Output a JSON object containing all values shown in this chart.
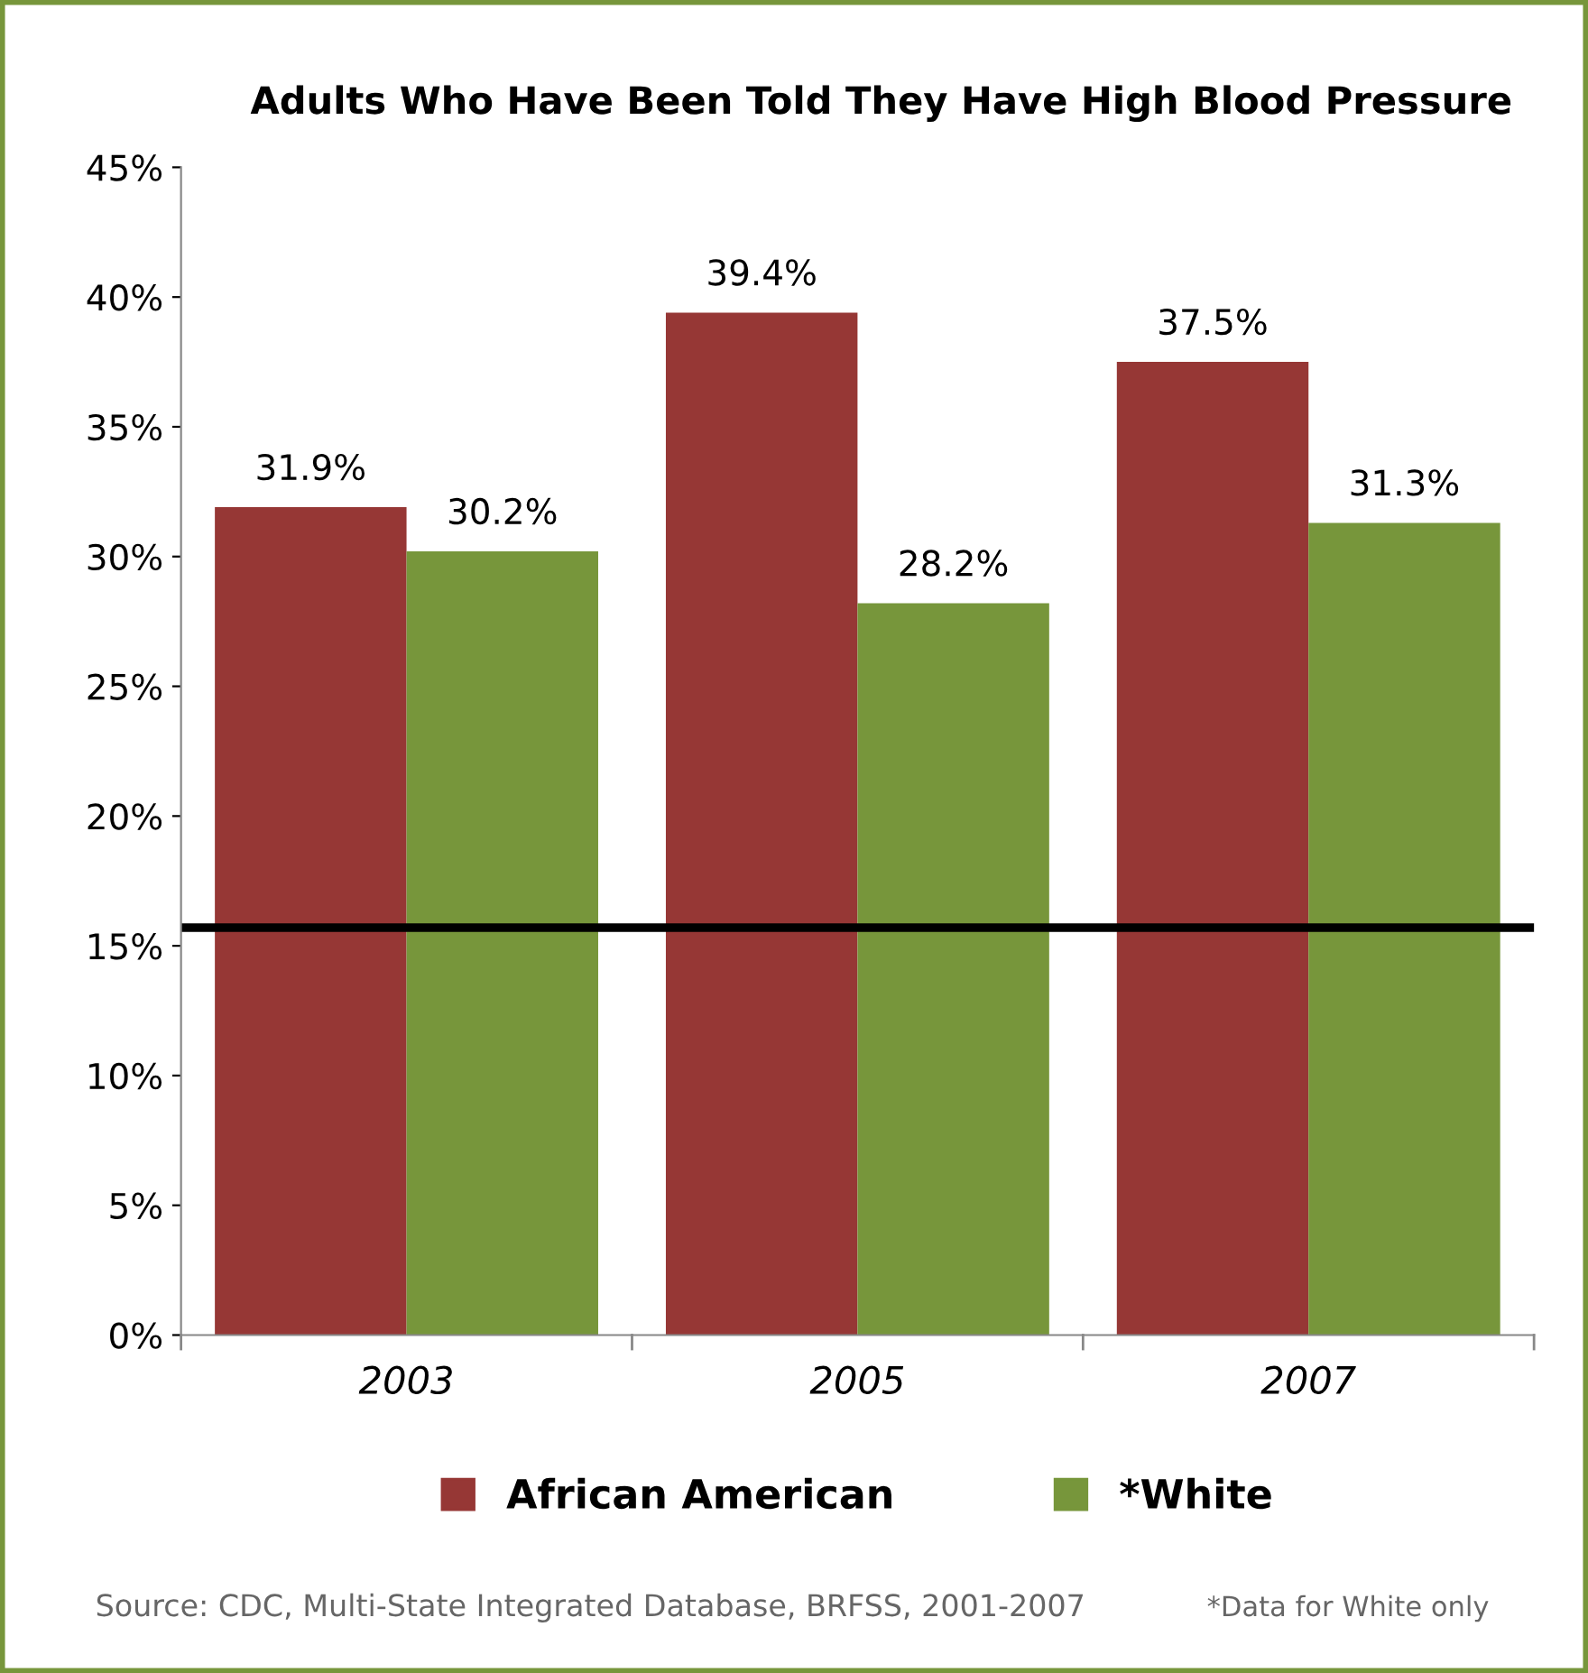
{
  "chart_data": {
    "type": "bar",
    "title": "Adults Who Have Been Told They Have High Blood Pressure",
    "categories": [
      "2003",
      "2005",
      "2007"
    ],
    "series": [
      {
        "name": "African American",
        "color": "#963735",
        "values": [
          31.9,
          39.4,
          37.5
        ],
        "value_labels": [
          "31.9%",
          "39.4%",
          "37.5%"
        ]
      },
      {
        "name": "*White",
        "color": "#77963b",
        "values": [
          30.2,
          28.2,
          31.3
        ],
        "value_labels": [
          "30.2%",
          "28.2%",
          "31.3%"
        ]
      }
    ],
    "ylim": [
      0,
      45
    ],
    "yticks": [
      {
        "value": 0,
        "label": "0%"
      },
      {
        "value": 5,
        "label": "5%"
      },
      {
        "value": 10,
        "label": "10%"
      },
      {
        "value": 15,
        "label": "15%"
      },
      {
        "value": 20,
        "label": "20%"
      },
      {
        "value": 25,
        "label": "25%"
      },
      {
        "value": 30,
        "label": "30%"
      },
      {
        "value": 35,
        "label": "35%"
      },
      {
        "value": 40,
        "label": "40%"
      },
      {
        "value": 45,
        "label": "45%"
      }
    ],
    "ref_lines": [
      {
        "axis": "y",
        "value": 15.7,
        "label": null,
        "color": "#000000"
      }
    ],
    "legend": "bottom",
    "grid": false,
    "annotations": [
      "Source: CDC, Multi-State Integrated Database, BRFSS, 2001-2007",
      "*Data for White only"
    ]
  }
}
